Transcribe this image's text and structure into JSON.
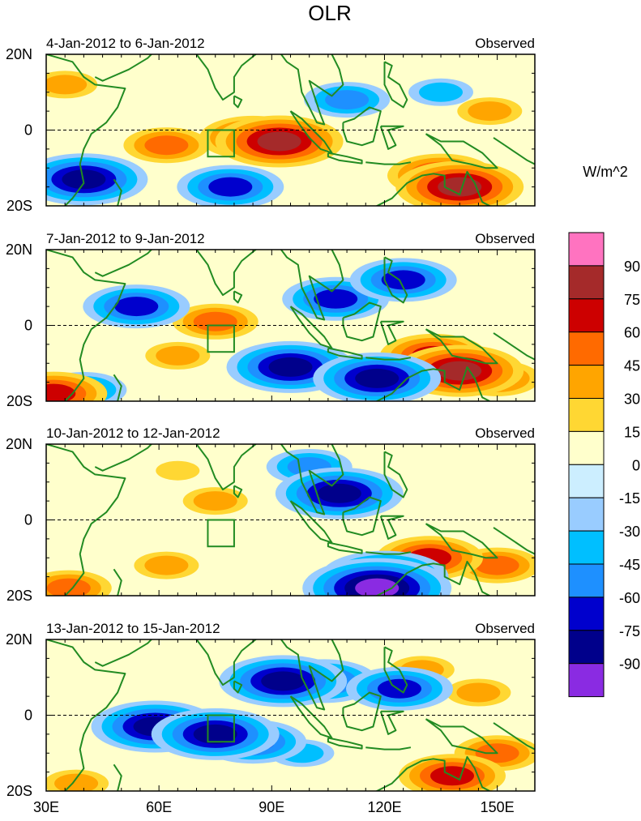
{
  "chart_data": {
    "type": "heatmap",
    "title": "OLR",
    "units_label": "W/m^2",
    "x_ticks": [
      "30E",
      "60E",
      "90E",
      "120E",
      "150E"
    ],
    "x_tick_values": [
      30,
      60,
      90,
      120,
      150
    ],
    "xlim": [
      30,
      160
    ],
    "ylim": [
      -20,
      20
    ],
    "y_ticks": [
      "20N",
      "0",
      "20S"
    ],
    "y_tick_values": [
      20,
      0,
      -20
    ],
    "colorbar": {
      "levels": [
        "90",
        "75",
        "60",
        "45",
        "30",
        "15",
        "0",
        "-15",
        "-30",
        "-45",
        "-60",
        "-75",
        "-90"
      ],
      "colors": [
        "#ff73c0",
        "#a52a2a",
        "#cd0000",
        "#ff6a00",
        "#ffa500",
        "#ffd733",
        "#ffffcc",
        "#cceeff",
        "#99ccff",
        "#00bfff",
        "#1e90ff",
        "#0000cd",
        "#00008b",
        "#8a2be2"
      ]
    },
    "panels": [
      {
        "period": "4-Jan-2012 to 6-Jan-2012",
        "label": "Observed",
        "features": [
          {
            "lon": 85,
            "lat": -2,
            "value": 60
          },
          {
            "lon": 92,
            "lat": -3,
            "value": 75
          },
          {
            "lon": 62,
            "lat": -4,
            "value": 45
          },
          {
            "lon": 140,
            "lat": -15,
            "value": 75
          },
          {
            "lon": 135,
            "lat": -12,
            "value": 60
          },
          {
            "lon": 40,
            "lat": -13,
            "value": -75
          },
          {
            "lon": 79,
            "lat": -15,
            "value": -60
          },
          {
            "lon": 110,
            "lat": 8,
            "value": -45
          },
          {
            "lon": 135,
            "lat": 10,
            "value": -30
          },
          {
            "lon": 35,
            "lat": 12,
            "value": 30
          },
          {
            "lon": 148,
            "lat": 5,
            "value": 30
          }
        ]
      },
      {
        "period": "7-Jan-2012 to 9-Jan-2012",
        "label": "Observed",
        "features": [
          {
            "lon": 75,
            "lat": 1,
            "value": 45
          },
          {
            "lon": 65,
            "lat": -8,
            "value": 30
          },
          {
            "lon": 140,
            "lat": -12,
            "value": 75
          },
          {
            "lon": 133,
            "lat": -8,
            "value": 60
          },
          {
            "lon": 150,
            "lat": -14,
            "value": 45
          },
          {
            "lon": 32,
            "lat": -18,
            "value": 60
          },
          {
            "lon": 95,
            "lat": -11,
            "value": -75
          },
          {
            "lon": 118,
            "lat": -14,
            "value": -75
          },
          {
            "lon": 107,
            "lat": 7,
            "value": -60
          },
          {
            "lon": 125,
            "lat": 12,
            "value": -60
          },
          {
            "lon": 54,
            "lat": 5,
            "value": -60
          },
          {
            "lon": 40,
            "lat": -17,
            "value": -45
          }
        ]
      },
      {
        "period": "10-Jan-2012 to 12-Jan-2012",
        "label": "Observed",
        "features": [
          {
            "lon": 108,
            "lat": 7,
            "value": -75
          },
          {
            "lon": 100,
            "lat": 14,
            "value": -45
          },
          {
            "lon": 120,
            "lat": -15,
            "value": -75
          },
          {
            "lon": 118,
            "lat": -18,
            "value": -90
          },
          {
            "lon": 132,
            "lat": -10,
            "value": 60
          },
          {
            "lon": 150,
            "lat": -12,
            "value": 45
          },
          {
            "lon": 75,
            "lat": 5,
            "value": 30
          },
          {
            "lon": 62,
            "lat": -12,
            "value": 30
          },
          {
            "lon": 36,
            "lat": -18,
            "value": 45
          },
          {
            "lon": 65,
            "lat": 13,
            "value": 15
          }
        ]
      },
      {
        "period": "13-Jan-2012 to 15-Jan-2012",
        "label": "Observed",
        "features": [
          {
            "lon": 59,
            "lat": -3,
            "value": -75
          },
          {
            "lon": 75,
            "lat": -5,
            "value": -75
          },
          {
            "lon": 85,
            "lat": -7,
            "value": -60
          },
          {
            "lon": 93,
            "lat": 9,
            "value": -75
          },
          {
            "lon": 104,
            "lat": 9,
            "value": -60
          },
          {
            "lon": 124,
            "lat": 7,
            "value": -60
          },
          {
            "lon": 98,
            "lat": -10,
            "value": -30
          },
          {
            "lon": 138,
            "lat": -16,
            "value": 60
          },
          {
            "lon": 150,
            "lat": -10,
            "value": 45
          },
          {
            "lon": 130,
            "lat": 12,
            "value": 30
          },
          {
            "lon": 145,
            "lat": 6,
            "value": 30
          },
          {
            "lon": 38,
            "lat": -18,
            "value": 30
          }
        ]
      }
    ]
  }
}
